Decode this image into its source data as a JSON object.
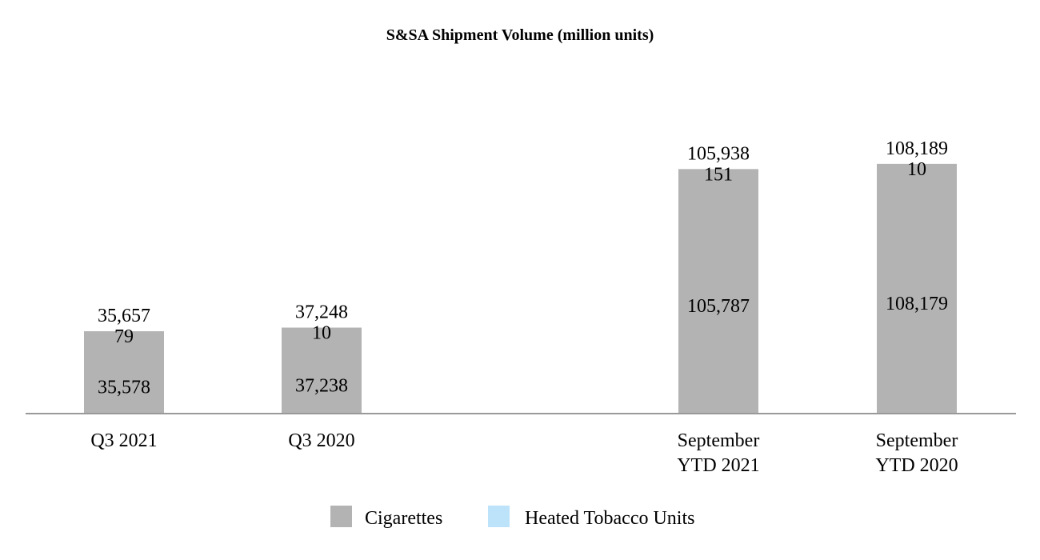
{
  "chart_data": {
    "type": "bar",
    "stacked": true,
    "title": "S&SA Shipment Volume (million units)",
    "xlabel": "",
    "ylabel": "",
    "categories": [
      [
        "Q3 2021"
      ],
      [
        "Q3 2020"
      ],
      [
        "September",
        "YTD 2021"
      ],
      [
        "September",
        "YTD 2020"
      ]
    ],
    "series": [
      {
        "name": "Cigarettes",
        "color": "#b3b3b3",
        "values": [
          35578,
          37238,
          105787,
          108179
        ],
        "labels": [
          "35,578",
          "37,238",
          "105,787",
          "108,179"
        ]
      },
      {
        "name": "Heated Tobacco Units",
        "color": "#bde3fa",
        "values": [
          79,
          10,
          151,
          10
        ],
        "labels": [
          "79",
          "10",
          "151",
          "10"
        ]
      }
    ],
    "totals": {
      "values": [
        35657,
        37248,
        105938,
        108189
      ],
      "labels": [
        "35,657",
        "37,248",
        "105,938",
        "108,189"
      ]
    },
    "ylim": [
      0,
      130000
    ],
    "grid": false,
    "legend": "bottom-center",
    "axis_color": "#999999"
  }
}
